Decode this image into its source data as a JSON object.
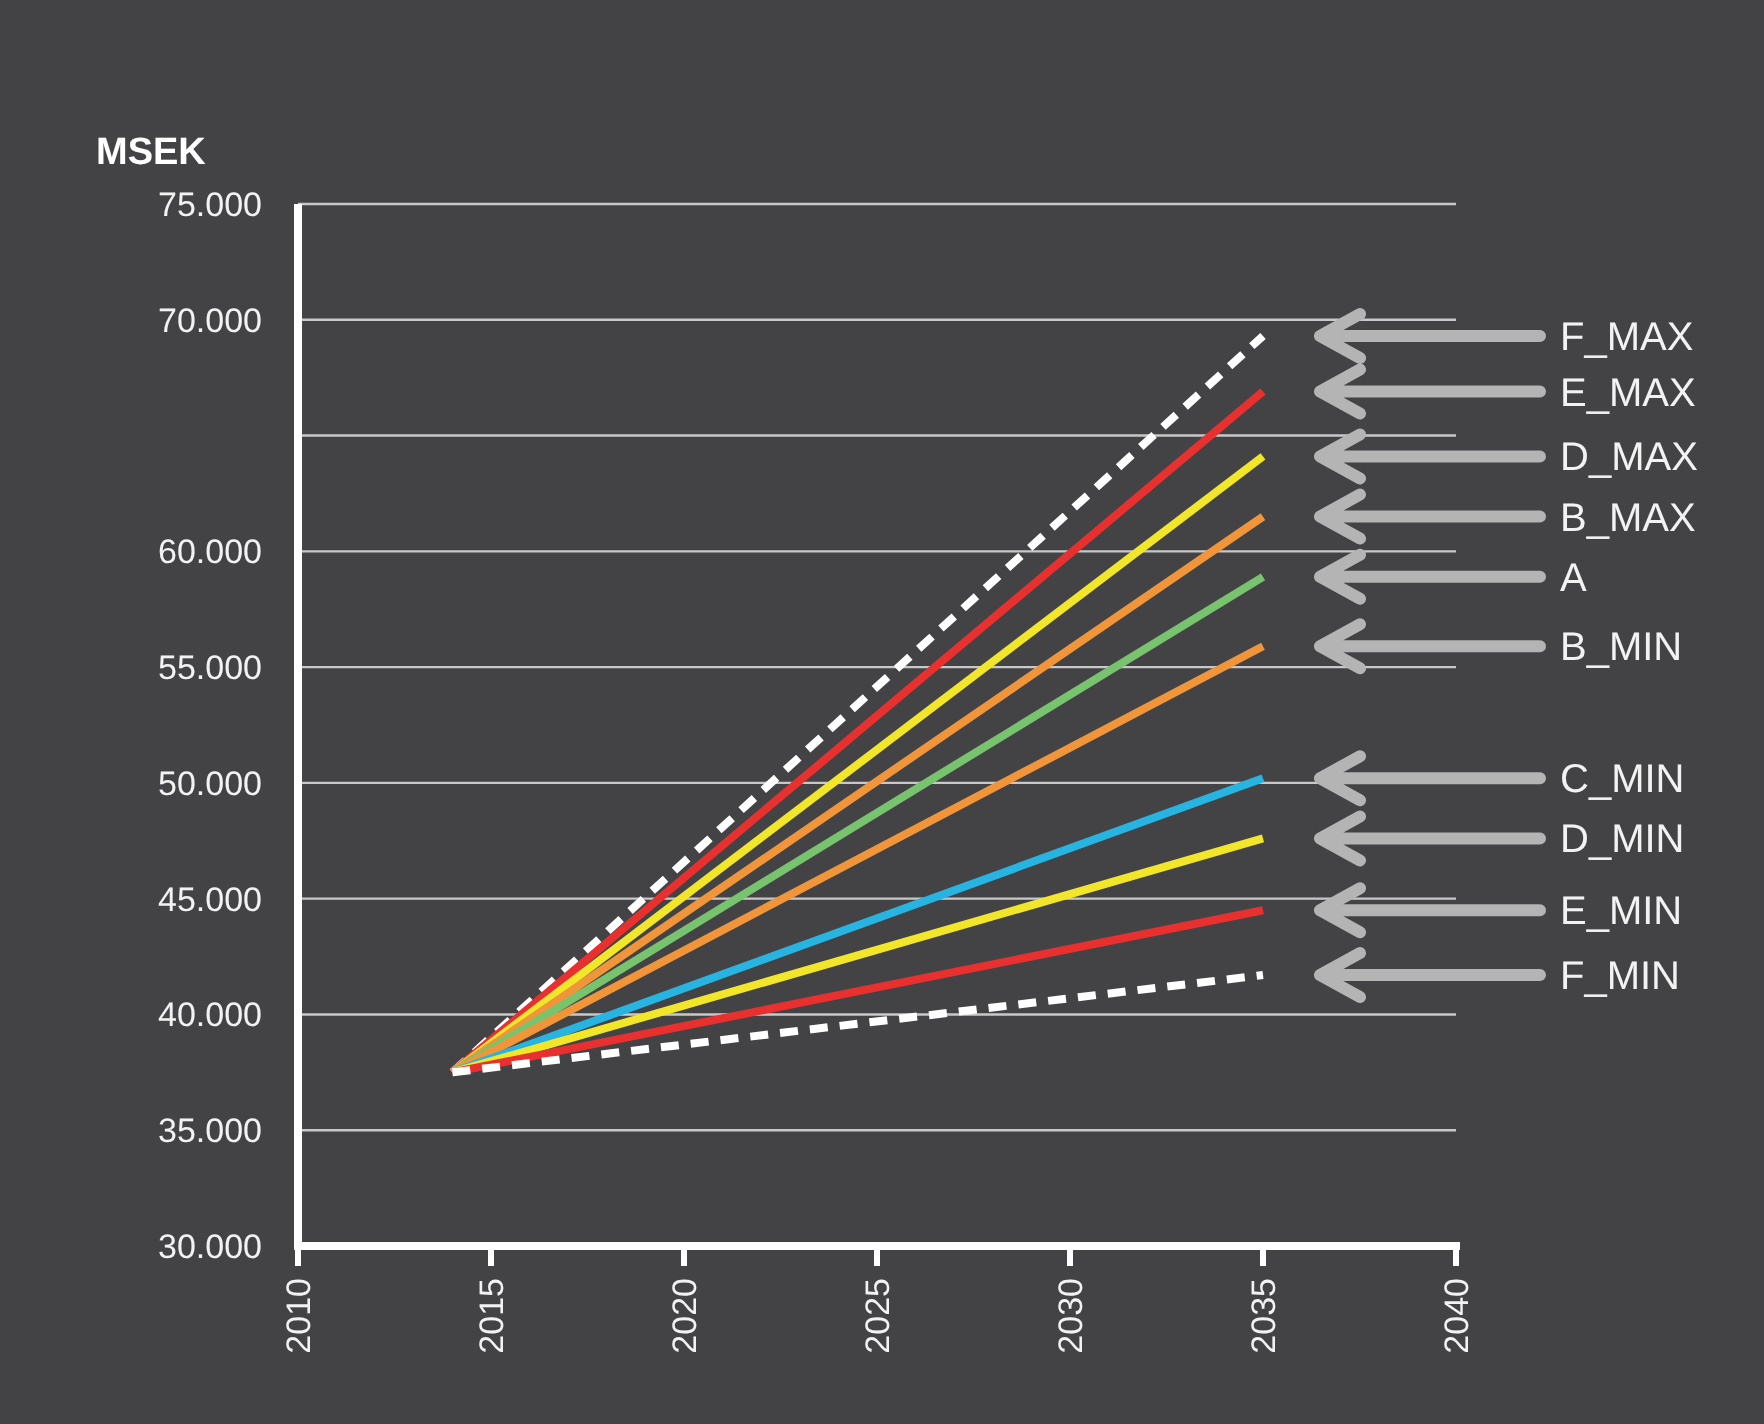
{
  "chart_data": {
    "type": "line",
    "ylabel": "MSEK",
    "x": [
      2014,
      2035
    ],
    "xlim": [
      2010,
      2040
    ],
    "xticks": [
      2010,
      2015,
      2020,
      2025,
      2030,
      2035,
      2040
    ],
    "ylim": [
      30000,
      75000
    ],
    "yticks": [
      {
        "value": 30000,
        "label": "30.000"
      },
      {
        "value": 35000,
        "label": "35.000"
      },
      {
        "value": 40000,
        "label": "40.000"
      },
      {
        "value": 45000,
        "label": "45.000"
      },
      {
        "value": 50000,
        "label": "50.000"
      },
      {
        "value": 55000,
        "label": "55.000"
      },
      {
        "value": 60000,
        "label": "60.000"
      },
      {
        "value": 65000,
        "label": null
      },
      {
        "value": 70000,
        "label": "70.000"
      },
      {
        "value": 75000,
        "label": "75.000"
      }
    ],
    "grid": "y",
    "marker": "none",
    "series": [
      {
        "name": "F_MAX",
        "color": "#ffffff",
        "values": [
          37500,
          69300
        ],
        "line_style": "dashed"
      },
      {
        "name": "E_MAX",
        "color": "#e8312f",
        "values": [
          37500,
          66900
        ]
      },
      {
        "name": "D_MAX",
        "color": "#f2e62a",
        "values": [
          37500,
          64100
        ]
      },
      {
        "name": "B_MAX",
        "color": "#f0953a",
        "values": [
          37500,
          61500
        ]
      },
      {
        "name": "A",
        "color": "#78c46e",
        "values": [
          37500,
          58900
        ]
      },
      {
        "name": "B_MIN",
        "color": "#f0953a",
        "values": [
          37500,
          55900
        ]
      },
      {
        "name": "C_MIN",
        "color": "#28b4e0",
        "values": [
          37500,
          50200
        ]
      },
      {
        "name": "D_MIN",
        "color": "#f2e62a",
        "values": [
          37500,
          47600
        ]
      },
      {
        "name": "E_MIN",
        "color": "#e8312f",
        "values": [
          37500,
          44500
        ]
      },
      {
        "name": "F_MIN",
        "color": "#ffffff",
        "values": [
          37500,
          41700
        ],
        "line_style": "dashed"
      }
    ]
  }
}
